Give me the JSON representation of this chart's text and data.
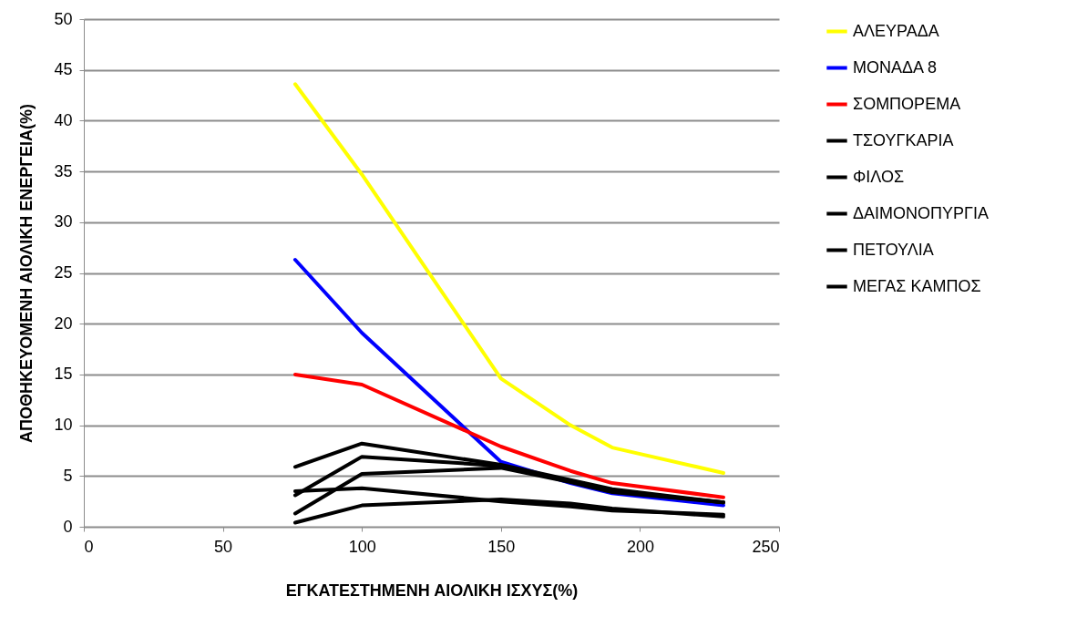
{
  "chart_data": {
    "type": "line",
    "xlabel": "ΕΓΚΑΤΕΣΤΗΜΕΝΗ ΑΙΟΛΙΚΗ ΙΣΧΥΣ(%)",
    "ylabel": "ΑΠΟΘΗΚΕΥΟΜΕΝΗ ΑΙΟΛΙΚΗ ΕΝΕΡΓΕΙΑ(%)",
    "x": [
      76,
      100,
      150,
      175,
      190,
      230
    ],
    "xlim": [
      0,
      250
    ],
    "xticks": [
      0,
      50,
      100,
      150,
      200,
      250
    ],
    "ylim": [
      0,
      50
    ],
    "yticks": [
      0,
      5,
      10,
      15,
      20,
      25,
      30,
      35,
      40,
      45,
      50
    ],
    "grid": "y",
    "legend": "right",
    "marker": "none",
    "line_style": "solid",
    "series": [
      {
        "name": "ΑΛΕΥΡΑΔΑ",
        "color": "#ffff00",
        "values": [
          43.6,
          34.7,
          14.6,
          10.0,
          7.8,
          5.3
        ]
      },
      {
        "name": "ΜΟΝΑΔΑ 8",
        "color": "#0000ff",
        "values": [
          26.3,
          19.1,
          6.4,
          4.3,
          3.3,
          2.1
        ]
      },
      {
        "name": "ΣΟΜΠΟΡΕΜΑ",
        "color": "#ff0000",
        "values": [
          15.0,
          14.0,
          7.9,
          5.5,
          4.3,
          2.9
        ]
      },
      {
        "name": "ΤΣΟΥΓΚΑΡΙΑ",
        "color": "#000000",
        "values": [
          5.9,
          8.2,
          6.1,
          4.6,
          3.7,
          2.4
        ]
      },
      {
        "name": "ΦΙΛΟΣ",
        "color": "#000000",
        "values": [
          3.1,
          6.9,
          6.0,
          4.5,
          3.5,
          2.4
        ]
      },
      {
        "name": "ΔΑΙΜΟΝΟΠΥΡΓΙΑ",
        "color": "#000000",
        "values": [
          1.3,
          5.2,
          5.8,
          4.4,
          3.4,
          2.4
        ]
      },
      {
        "name": "ΠΕΤΟΥΛΙΑ",
        "color": "#000000",
        "values": [
          3.5,
          3.8,
          2.5,
          2.0,
          1.6,
          1.2
        ]
      },
      {
        "name": "ΜΕΓΑΣ ΚΑΜΠΟΣ",
        "color": "#000000",
        "values": [
          0.4,
          2.1,
          2.7,
          2.3,
          1.8,
          1.0
        ]
      }
    ]
  }
}
